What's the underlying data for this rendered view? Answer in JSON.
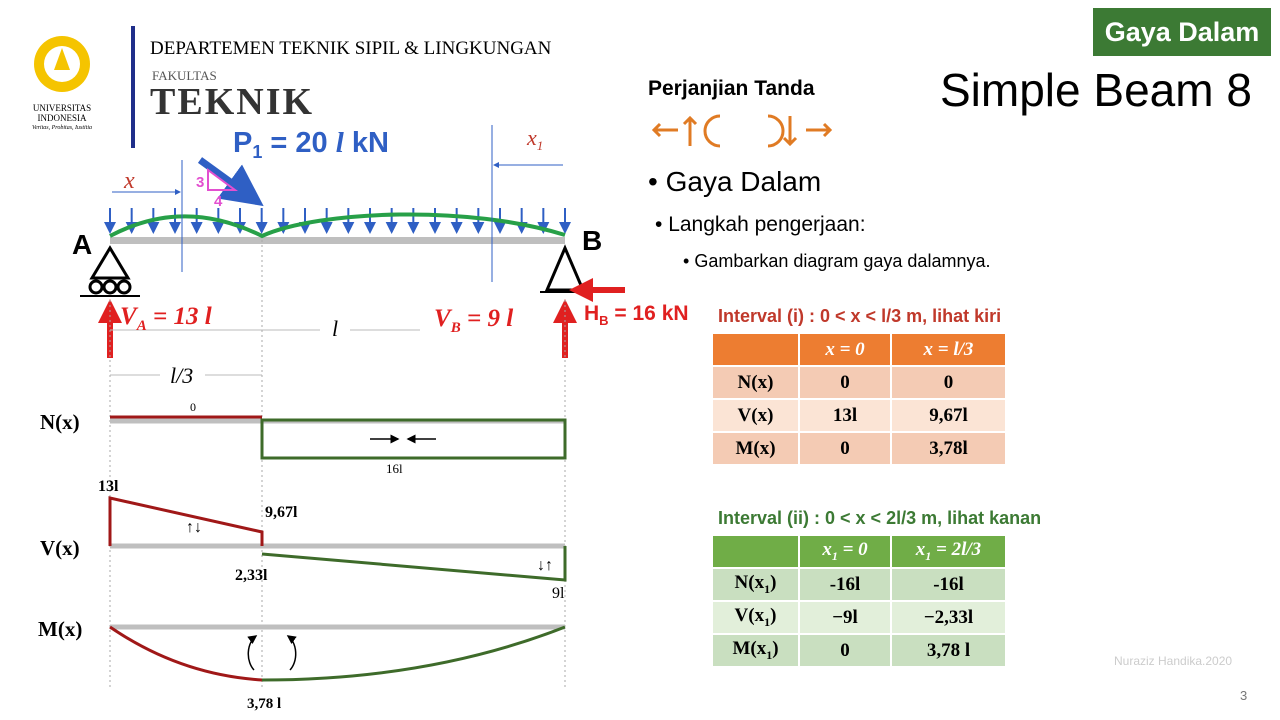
{
  "header": {
    "department": "DEPARTEMEN TEKNIK SIPIL & LINGKUNGAN",
    "faculty_small": "FAKULTAS",
    "faculty": "TEKNIK",
    "university": [
      "UNIVERSITAS",
      "INDONESIA"
    ],
    "motto": "Veritas, Probitas, Iustitia"
  },
  "badge": "Gaya Dalam",
  "title": "Simple Beam 8",
  "sign_convention": "Perjanjian Tanda",
  "bullets": {
    "level1": "Gaya Dalam",
    "level2": "Langkah pengerjaan:",
    "level3": "Gambarkan diagram gaya dalamnya."
  },
  "beam": {
    "load": {
      "name": "P",
      "sub": "1",
      "eq": " = 20 ",
      "l": "l",
      "unit": " kN"
    },
    "slope": [
      "3",
      "4"
    ],
    "x": "x",
    "x1": {
      "main": "x",
      "sub": "1"
    },
    "supports": [
      "A",
      "B"
    ],
    "VA": {
      "name": "V",
      "sub": "A",
      "eq": " = 13 l"
    },
    "VB": {
      "name": "V",
      "sub": "B",
      "eq": " = 9 l"
    },
    "HB": {
      "name": "H",
      "sub": "B",
      "eq": " = 16 kN"
    },
    "span": "l",
    "third": "l/3"
  },
  "diagrams": {
    "N": {
      "label": "N(x)",
      "values": [
        "0",
        "16l"
      ]
    },
    "V": {
      "label": "V(x)",
      "values": [
        "13l",
        "9,67l",
        "2,33l",
        "9l"
      ]
    },
    "M": {
      "label": "M(x)",
      "values": [
        "3,78 l"
      ]
    }
  },
  "tables": [
    {
      "title": "Interval (i) : 0 < x < l/3 m, lihat kiri",
      "header": [
        {
          "main": "x",
          "sub": "",
          "rest": " = 0"
        },
        {
          "main": "x",
          "sub": "",
          "rest": " = l/3"
        }
      ],
      "rows": [
        [
          {
            "main": "N(x)"
          },
          "0",
          "0"
        ],
        [
          {
            "main": "V(x)"
          },
          "13l",
          "9,67l"
        ],
        [
          {
            "main": "M(x)"
          },
          "0",
          "3,78l"
        ]
      ]
    },
    {
      "title": "Interval (ii) : 0 < x < 2l/3  m, lihat kanan",
      "header": [
        {
          "main": "x",
          "sub": "1",
          "rest": " = 0"
        },
        {
          "main": "x",
          "sub": "1",
          "rest": " = 2l/3"
        }
      ],
      "rows": [
        [
          {
            "main": "N(x",
            "sub": "1",
            "rest": ")"
          },
          "-16l",
          "-16l"
        ],
        [
          {
            "main": "V(x",
            "sub": "1",
            "rest": ")"
          },
          "−9l",
          "−2,33l"
        ],
        [
          {
            "main": "M(x",
            "sub": "1",
            "rest": ")"
          },
          "0",
          "3,78 l"
        ]
      ]
    }
  ],
  "footer": {
    "author": "Nuraziz Handika.2020",
    "page": "3"
  }
}
